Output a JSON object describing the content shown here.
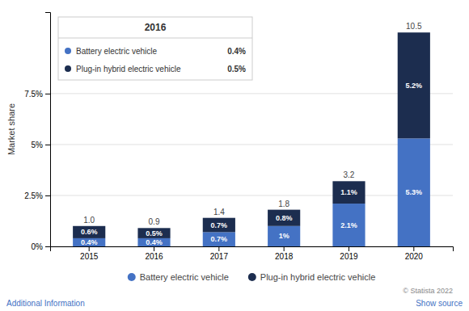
{
  "chart_data": {
    "type": "bar",
    "stacked": true,
    "categories": [
      "2015",
      "2016",
      "2017",
      "2018",
      "2019",
      "2020"
    ],
    "series": [
      {
        "name": "Battery electric vehicle",
        "color": "#4472C4",
        "values": [
          0.4,
          0.4,
          0.7,
          1.0,
          2.1,
          5.3
        ],
        "value_labels": [
          "0.4%",
          "0.4%",
          "0.7%",
          "1%",
          "2.1%",
          "5.3%"
        ]
      },
      {
        "name": "Plug-in hybrid electric vehicle",
        "color": "#1C2D4F",
        "values": [
          0.6,
          0.5,
          0.7,
          0.8,
          1.1,
          5.2
        ],
        "value_labels": [
          "0.6%",
          "0.5%",
          "0.7%",
          "0.8%",
          "1.1%",
          "5.2%"
        ]
      }
    ],
    "data_labels": true,
    "totals": [
      1.0,
      0.9,
      1.4,
      1.8,
      3.2,
      10.5
    ],
    "total_labels": [
      "1.0",
      "0.9",
      "1.4",
      "1.8",
      "3.2",
      "10.5"
    ],
    "ylabel": "Market share",
    "ylim": [
      0,
      11.5
    ],
    "yticks": [
      {
        "value": 0,
        "label": "0%"
      },
      {
        "value": 2.5,
        "label": "2.5%"
      },
      {
        "value": 5.0,
        "label": "5%"
      },
      {
        "value": 7.5,
        "label": "7.5%"
      }
    ],
    "grid": true,
    "legend": "bottom",
    "tooltip": {
      "title": "2016",
      "items": [
        {
          "name": "Battery electric vehicle",
          "color": "#4472C4",
          "value_label": "0.4%"
        },
        {
          "name": "Plug-in hybrid electric vehicle",
          "color": "#1C2D4F",
          "value_label": "0.5%"
        }
      ]
    },
    "copyright": "© Statista 2022",
    "footer_links": [
      "Additional Information",
      "Show source"
    ]
  }
}
